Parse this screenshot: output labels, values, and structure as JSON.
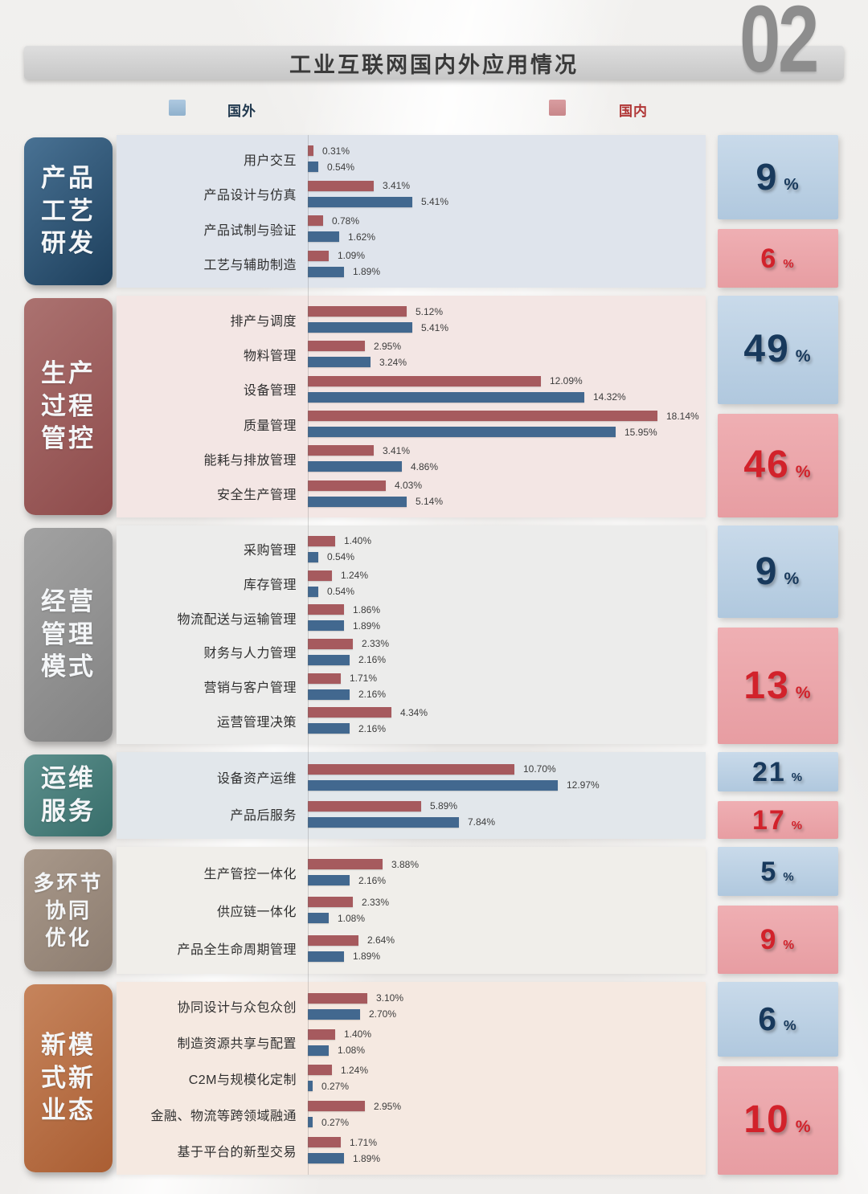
{
  "page": {
    "number": "02"
  },
  "header": {
    "title": "工业互联网国内外应用情况"
  },
  "legend": {
    "foreign_label": "国外",
    "domestic_label": "国内"
  },
  "colors": {
    "bar_domestic": "#a65a5e",
    "bar_foreign": "#42688f",
    "legend_foreign_text": "#21394f",
    "legend_domestic_text": "#b03535",
    "summary_foreign_text": "#18395c",
    "summary_domestic_text": "#d2222b",
    "summary_foreign_bg": "#bccfe3",
    "summary_domestic_bg": "#eba6ab"
  },
  "chart_data": {
    "type": "bar",
    "orientation": "horizontal",
    "unit": "%",
    "series": [
      {
        "key": "domestic",
        "name": "国内",
        "color": "#a65a5e"
      },
      {
        "key": "foreign",
        "name": "国外",
        "color": "#42688f"
      }
    ],
    "xlim": [
      0,
      20
    ],
    "summary_unit": "%",
    "sections": [
      {
        "label": "产品工艺研发",
        "label_lines": [
          "产品",
          "工艺",
          "研发"
        ],
        "label_gradient": [
          "#497294",
          "#1d3f5c"
        ],
        "band_bg": "#dfe4ec",
        "summary": {
          "foreign": 9,
          "domestic": 6
        },
        "items": [
          {
            "name": "用户交互",
            "domestic": 0.31,
            "domestic_label": "0.31%",
            "foreign": 0.54,
            "foreign_label": "0.54%"
          },
          {
            "name": "产品设计与仿真",
            "domestic": 3.41,
            "domestic_label": "3.41%",
            "foreign": 5.41,
            "foreign_label": "5.41%"
          },
          {
            "name": "产品试制与验证",
            "domestic": 0.78,
            "domestic_label": "0.78%",
            "foreign": 1.62,
            "foreign_label": "1.62%"
          },
          {
            "name": "工艺与辅助制造",
            "domestic": 1.09,
            "domestic_label": "1.09%",
            "foreign": 1.89,
            "foreign_label": "1.89%"
          }
        ]
      },
      {
        "label": "生产过程管控",
        "label_lines": [
          "生产",
          "过程",
          "管控"
        ],
        "label_gradient": [
          "#ab7270",
          "#8e4b4b"
        ],
        "band_bg": "#f3e6e4",
        "summary": {
          "foreign": 49,
          "domestic": 46
        },
        "items": [
          {
            "name": "排产与调度",
            "domestic": 5.12,
            "domestic_label": "5.12%",
            "foreign": 5.41,
            "foreign_label": "5.41%"
          },
          {
            "name": "物料管理",
            "domestic": 2.95,
            "domestic_label": "2.95%",
            "foreign": 3.24,
            "foreign_label": "3.24%"
          },
          {
            "name": "设备管理",
            "domestic": 12.09,
            "domestic_label": "12.09%",
            "foreign": 14.32,
            "foreign_label": "14.32%"
          },
          {
            "name": "质量管理",
            "domestic": 18.14,
            "domestic_label": "18.14%",
            "foreign": 15.95,
            "foreign_label": "15.95%"
          },
          {
            "name": "能耗与排放管理",
            "domestic": 3.41,
            "domestic_label": "3.41%",
            "foreign": 4.86,
            "foreign_label": "4.86%"
          },
          {
            "name": "安全生产管理",
            "domestic": 4.03,
            "domestic_label": "4.03%",
            "foreign": 5.14,
            "foreign_label": "5.14%"
          }
        ]
      },
      {
        "label": "经营管理模式",
        "label_lines": [
          "经营",
          "管理",
          "模式"
        ],
        "label_gradient": [
          "#a2a2a2",
          "#828282"
        ],
        "band_bg": "#ececeb",
        "summary": {
          "foreign": 9,
          "domestic": 13
        },
        "items": [
          {
            "name": "采购管理",
            "domestic": 1.4,
            "domestic_label": "1.40%",
            "foreign": 0.54,
            "foreign_label": "0.54%"
          },
          {
            "name": "库存管理",
            "domestic": 1.24,
            "domestic_label": "1.24%",
            "foreign": 0.54,
            "foreign_label": "0.54%"
          },
          {
            "name": "物流配送与运输管理",
            "domestic": 1.86,
            "domestic_label": "1.86%",
            "foreign": 1.89,
            "foreign_label": "1.89%"
          },
          {
            "name": "财务与人力管理",
            "domestic": 2.33,
            "domestic_label": "2.33%",
            "foreign": 2.16,
            "foreign_label": "2.16%"
          },
          {
            "name": "营销与客户管理",
            "domestic": 1.71,
            "domestic_label": "1.71%",
            "foreign": 2.16,
            "foreign_label": "2.16%"
          },
          {
            "name": "运营管理决策",
            "domestic": 4.34,
            "domestic_label": "4.34%",
            "foreign": 2.16,
            "foreign_label": "2.16%"
          }
        ]
      },
      {
        "label": "运维服务",
        "label_lines": [
          "运维",
          "服务"
        ],
        "label_gradient": [
          "#5d908d",
          "#376d6a"
        ],
        "band_bg": "#e2e7eb",
        "summary": {
          "foreign": 21,
          "domestic": 17
        },
        "items": [
          {
            "name": "设备资产运维",
            "domestic": 10.7,
            "domestic_label": "10.70%",
            "foreign": 12.97,
            "foreign_label": "12.97%"
          },
          {
            "name": "产品后服务",
            "domestic": 5.89,
            "domestic_label": "5.89%",
            "foreign": 7.84,
            "foreign_label": "7.84%"
          }
        ]
      },
      {
        "label": "多环节协同优化",
        "label_lines": [
          "多环节",
          "协同",
          "优化"
        ],
        "label_gradient": [
          "#a8988a",
          "#8d7d70"
        ],
        "band_bg": "#f0eeea",
        "summary": {
          "foreign": 5,
          "domestic": 9
        },
        "items": [
          {
            "name": "生产管控一体化",
            "domestic": 3.88,
            "domestic_label": "3.88%",
            "foreign": 2.16,
            "foreign_label": "2.16%"
          },
          {
            "name": "供应链一体化",
            "domestic": 2.33,
            "domestic_label": "2.33%",
            "foreign": 1.08,
            "foreign_label": "1.08%"
          },
          {
            "name": "产品全生命周期管理",
            "domestic": 2.64,
            "domestic_label": "2.64%",
            "foreign": 1.89,
            "foreign_label": "1.89%"
          }
        ]
      },
      {
        "label": "新模式新业态",
        "label_lines": [
          "新模",
          "式新",
          "业态"
        ],
        "label_gradient": [
          "#c6845c",
          "#aa5e33"
        ],
        "band_bg": "#f5e9e1",
        "summary": {
          "foreign": 6,
          "domestic": 10
        },
        "items": [
          {
            "name": "协同设计与众包众创",
            "domestic": 3.1,
            "domestic_label": "3.10%",
            "foreign": 2.7,
            "foreign_label": "2.70%"
          },
          {
            "name": "制造资源共享与配置",
            "domestic": 1.4,
            "domestic_label": "1.40%",
            "foreign": 1.08,
            "foreign_label": "1.08%"
          },
          {
            "name": "C2M与规模化定制",
            "domestic": 1.24,
            "domestic_label": "1.24%",
            "foreign": 0.27,
            "foreign_label": "0.27%"
          },
          {
            "name": "金融、物流等跨领域融通",
            "domestic": 2.95,
            "domestic_label": "2.95%",
            "foreign": 0.27,
            "foreign_label": "0.27%"
          },
          {
            "name": "基于平台的新型交易",
            "domestic": 1.71,
            "domestic_label": "1.71%",
            "foreign": 1.89,
            "foreign_label": "1.89%"
          }
        ]
      }
    ]
  }
}
